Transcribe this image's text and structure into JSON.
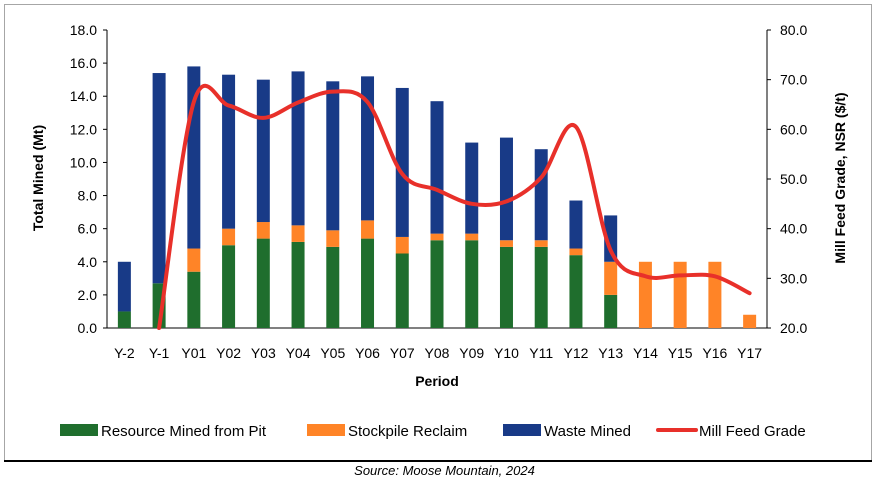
{
  "chart_data": {
    "type": "bar",
    "stacked": true,
    "categories": [
      "Y-2",
      "Y-1",
      "Y01",
      "Y02",
      "Y03",
      "Y04",
      "Y05",
      "Y06",
      "Y07",
      "Y08",
      "Y09",
      "Y10",
      "Y11",
      "Y12",
      "Y13",
      "Y14",
      "Y15",
      "Y16",
      "Y17"
    ],
    "series": [
      {
        "name": "Resource Mined from Pit",
        "color": "#1f6e2d",
        "values": [
          1.0,
          2.7,
          3.4,
          5.0,
          5.4,
          5.2,
          4.9,
          5.4,
          4.5,
          5.3,
          5.3,
          4.9,
          4.9,
          4.4,
          2.0,
          0,
          0,
          0,
          0
        ]
      },
      {
        "name": "Stockpile Reclaim",
        "color": "#ff8427",
        "values": [
          0,
          0,
          1.4,
          1.0,
          1.0,
          1.0,
          1.0,
          1.1,
          1.0,
          0.4,
          0.4,
          0.4,
          0.4,
          0.4,
          2.0,
          4.0,
          4.0,
          4.0,
          0.8
        ]
      },
      {
        "name": "Waste Mined",
        "color": "#183a87",
        "values": [
          3.0,
          12.7,
          11.0,
          9.3,
          8.6,
          9.3,
          9.0,
          8.7,
          9.0,
          8.0,
          5.5,
          6.2,
          5.5,
          2.9,
          2.8,
          0,
          0,
          0,
          0
        ]
      },
      {
        "name": "Mill Feed Grade",
        "color": "#e8302a",
        "axis": "right",
        "type": "line",
        "values": [
          null,
          20.0,
          65.5,
          64.8,
          62.3,
          65.4,
          67.6,
          65.5,
          51.0,
          47.8,
          45.0,
          45.5,
          50.3,
          60.5,
          35.6,
          30.4,
          30.6,
          30.4,
          27.0
        ]
      }
    ],
    "xlabel": "Period",
    "ylabel": "Total Mined (Mt)",
    "y2label": "Mill Feed Grade, NSR ($/t)",
    "ylim": [
      0,
      18
    ],
    "y2lim": [
      20,
      80
    ],
    "yticks": [
      "0.0",
      "2.0",
      "4.0",
      "6.0",
      "8.0",
      "10.0",
      "12.0",
      "14.0",
      "16.0",
      "18.0"
    ],
    "y2ticks": [
      "20.0",
      "30.0",
      "40.0",
      "50.0",
      "60.0",
      "70.0",
      "80.0"
    ],
    "grid": false,
    "legend": "bottom"
  },
  "source": "Source: Moose Mountain, 2024"
}
